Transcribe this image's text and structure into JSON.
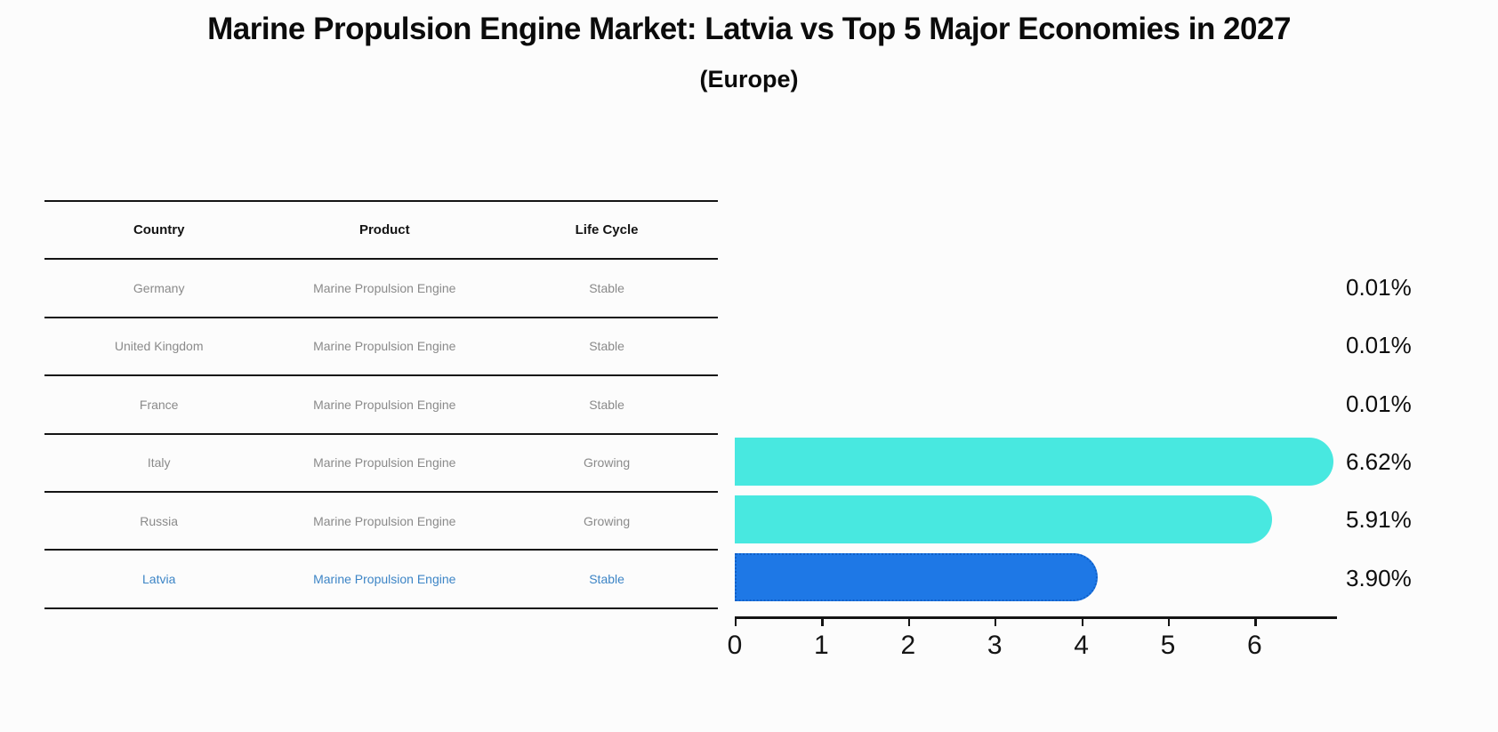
{
  "header": {
    "title": "Marine Propulsion Engine Market: Latvia vs Top 5 Major Economies in 2027",
    "subtitle": "(Europe)"
  },
  "table": {
    "columns": [
      "Country",
      "Product",
      "Life Cycle"
    ],
    "rows": [
      {
        "country": "Germany",
        "product": "Marine Propulsion Engine",
        "life_cycle": "Stable",
        "highlight": false
      },
      {
        "country": "United Kingdom",
        "product": "Marine Propulsion Engine",
        "life_cycle": "Stable",
        "highlight": false
      },
      {
        "country": "France",
        "product": "Marine Propulsion Engine",
        "life_cycle": "Stable",
        "highlight": false
      },
      {
        "country": "Italy",
        "product": "Marine Propulsion Engine",
        "life_cycle": "Growing",
        "highlight": false
      },
      {
        "country": "Russia",
        "product": "Marine Propulsion Engine",
        "life_cycle": "Growing",
        "highlight": false
      },
      {
        "country": "Latvia",
        "product": "Marine Propulsion Engine",
        "life_cycle": "Stable",
        "highlight": true
      }
    ]
  },
  "chart_data": {
    "type": "bar",
    "orientation": "horizontal",
    "title": "Marine Propulsion Engine Market: Latvia vs Top 5 Major Economies in 2027 (Europe)",
    "categories": [
      "Germany",
      "United Kingdom",
      "France",
      "Italy",
      "Russia",
      "Latvia"
    ],
    "values": [
      0.01,
      0.01,
      0.01,
      6.62,
      5.91,
      3.9
    ],
    "value_labels": [
      "0.01%",
      "0.01%",
      "0.01%",
      "6.62%",
      "5.91%",
      "3.90%"
    ],
    "x_ticks": [
      0,
      1,
      2,
      3,
      4,
      5,
      6
    ],
    "xlim": [
      0,
      6.93
    ],
    "grid": false,
    "legend": "none",
    "highlight_index": 5,
    "colors": {
      "default_bar": "#48e8e0",
      "highlight_bar": "#1e78e6",
      "highlight_border": "#1060c8",
      "highlight_text": "#3d85c6",
      "axis": "#141414",
      "cell_text": "#8a8a8a",
      "background": "#fcfcfc"
    }
  }
}
